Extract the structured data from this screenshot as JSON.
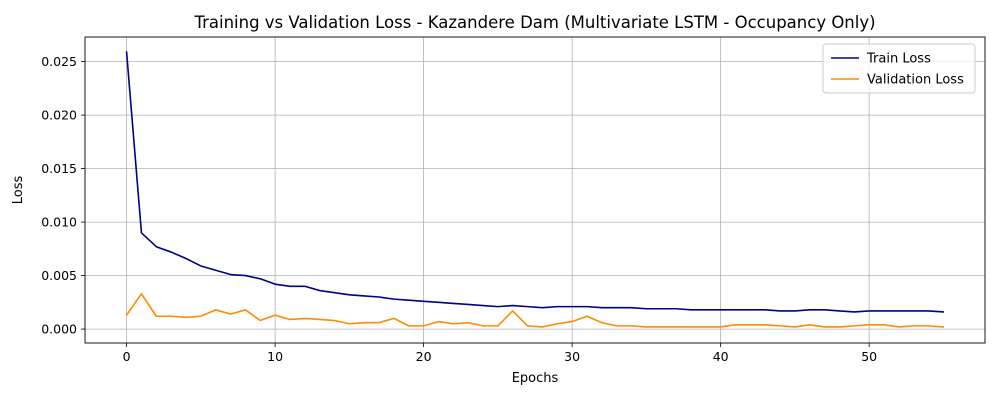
{
  "chart_data": {
    "type": "line",
    "title": "Training vs Validation Loss - Kazandere Dam (Multivariate LSTM - Occupancy Only)",
    "xlabel": "Epochs",
    "ylabel": "Loss",
    "xlim": [
      -2.8,
      57.8
    ],
    "ylim": [
      -0.0013,
      0.0273
    ],
    "xticks": [
      0,
      10,
      20,
      30,
      40,
      50
    ],
    "xtick_labels": [
      "0",
      "10",
      "20",
      "30",
      "40",
      "50"
    ],
    "yticks": [
      0.0,
      0.005,
      0.01,
      0.015,
      0.02,
      0.025
    ],
    "ytick_labels": [
      "0.000",
      "0.005",
      "0.010",
      "0.015",
      "0.020",
      "0.025"
    ],
    "grid": true,
    "legend_position": "top-right",
    "series": [
      {
        "name": "Train Loss",
        "color": "#00008b",
        "x": [
          0,
          1,
          2,
          3,
          4,
          5,
          6,
          7,
          8,
          9,
          10,
          11,
          12,
          13,
          14,
          15,
          16,
          17,
          18,
          19,
          20,
          21,
          22,
          23,
          24,
          25,
          26,
          27,
          28,
          29,
          30,
          31,
          32,
          33,
          34,
          35,
          36,
          37,
          38,
          39,
          40,
          41,
          42,
          43,
          44,
          45,
          46,
          47,
          48,
          49,
          50,
          51,
          52,
          53,
          54,
          55
        ],
        "values": [
          0.0259,
          0.009,
          0.0077,
          0.0072,
          0.0066,
          0.0059,
          0.0055,
          0.0051,
          0.005,
          0.0047,
          0.0042,
          0.004,
          0.004,
          0.0036,
          0.0034,
          0.0032,
          0.0031,
          0.003,
          0.0028,
          0.0027,
          0.0026,
          0.0025,
          0.0024,
          0.0023,
          0.0022,
          0.0021,
          0.0022,
          0.0021,
          0.002,
          0.0021,
          0.0021,
          0.0021,
          0.002,
          0.002,
          0.002,
          0.0019,
          0.0019,
          0.0019,
          0.0018,
          0.0018,
          0.0018,
          0.0018,
          0.0018,
          0.0018,
          0.0017,
          0.0017,
          0.0018,
          0.0018,
          0.0017,
          0.0016,
          0.0017,
          0.0017,
          0.0017,
          0.0017,
          0.0017,
          0.0016
        ]
      },
      {
        "name": "Validation Loss",
        "color": "#ff8c00",
        "x": [
          0,
          1,
          2,
          3,
          4,
          5,
          6,
          7,
          8,
          9,
          10,
          11,
          12,
          13,
          14,
          15,
          16,
          17,
          18,
          19,
          20,
          21,
          22,
          23,
          24,
          25,
          26,
          27,
          28,
          29,
          30,
          31,
          32,
          33,
          34,
          35,
          36,
          37,
          38,
          39,
          40,
          41,
          42,
          43,
          44,
          45,
          46,
          47,
          48,
          49,
          50,
          51,
          52,
          53,
          54,
          55
        ],
        "values": [
          0.0013,
          0.0033,
          0.0012,
          0.0012,
          0.0011,
          0.0012,
          0.0018,
          0.0014,
          0.0018,
          0.0008,
          0.0013,
          0.0009,
          0.001,
          0.0009,
          0.0008,
          0.0005,
          0.0006,
          0.0006,
          0.001,
          0.0003,
          0.0003,
          0.0007,
          0.0005,
          0.0006,
          0.0003,
          0.0003,
          0.0017,
          0.0003,
          0.0002,
          0.0005,
          0.0007,
          0.0012,
          0.0006,
          0.0003,
          0.0003,
          0.0002,
          0.0002,
          0.0002,
          0.0002,
          0.0002,
          0.0002,
          0.0004,
          0.0004,
          0.0004,
          0.0003,
          0.0002,
          0.0004,
          0.0002,
          0.0002,
          0.0003,
          0.0004,
          0.0004,
          0.0002,
          0.0003,
          0.0003,
          0.0002
        ]
      }
    ]
  }
}
